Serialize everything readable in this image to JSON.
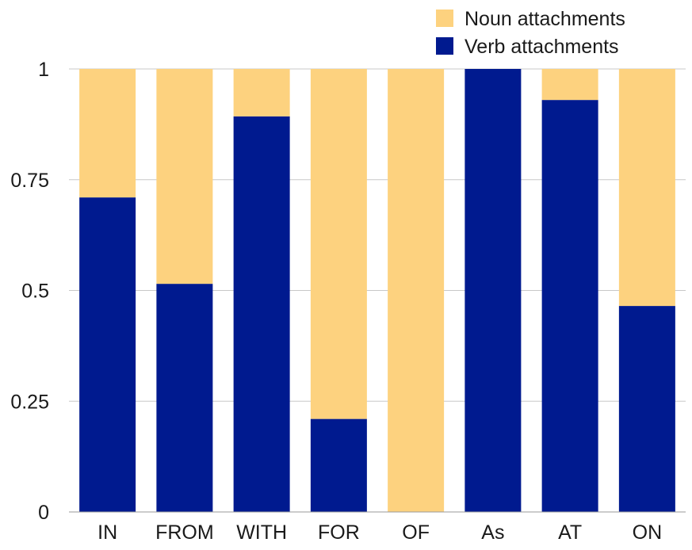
{
  "chart_data": {
    "type": "bar",
    "stacked": true,
    "normalized": true,
    "categories": [
      "IN",
      "FROM",
      "WITH",
      "FOR",
      "OF",
      "As",
      "AT",
      "ON"
    ],
    "series": [
      {
        "name": "Verb attachments",
        "color": "#001a8f",
        "values": [
          0.71,
          0.515,
          0.893,
          0.21,
          0.0,
          1.0,
          0.93,
          0.465
        ]
      },
      {
        "name": "Noun attachments",
        "color": "#fdd27f",
        "values": [
          0.29,
          0.485,
          0.107,
          0.79,
          1.0,
          0.0,
          0.07,
          0.535
        ]
      }
    ],
    "legend_order": [
      "Noun attachments",
      "Verb attachments"
    ],
    "y_ticks": [
      0,
      0.25,
      0.5,
      0.75,
      1
    ],
    "y_tick_labels": [
      "0",
      "0.25",
      "0.5",
      "0.75",
      "1"
    ],
    "ylim": [
      0,
      1
    ],
    "grid": true,
    "grid_color": "#c8c8c8",
    "legend_position": "top-right",
    "title": "",
    "xlabel": "",
    "ylabel": ""
  }
}
